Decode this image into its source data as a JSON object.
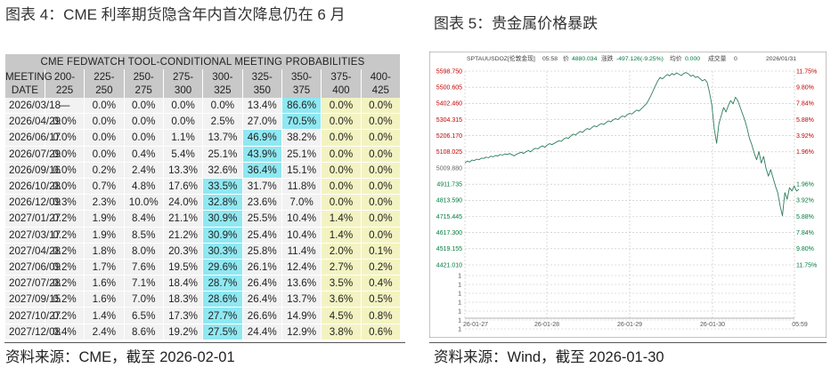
{
  "left": {
    "title": "图表 4：CME 利率期货隐含年内首次降息仍在 6 月",
    "source": "资料来源：CME，截至 2026-02-01",
    "table": {
      "heading": "CME FEDWATCH TOOL-CONDITIONAL MEETING PROBABILITIES",
      "date_header": [
        "MEETING",
        "DATE"
      ],
      "columns": [
        [
          "200-",
          "225"
        ],
        [
          "225-",
          "250"
        ],
        [
          "250-",
          "275"
        ],
        [
          "275-",
          "300"
        ],
        [
          "300-",
          "325"
        ],
        [
          "325-",
          "350"
        ],
        [
          "350-",
          "375"
        ],
        [
          "375-",
          "400"
        ],
        [
          "400-",
          "425"
        ]
      ],
      "rows": [
        {
          "date": "2026/03/18",
          "values": [
            "—",
            "0.0%",
            "0.0%",
            "0.0%",
            "0.0%",
            "13.4%",
            "86.6%",
            "0.0%",
            "0.0%"
          ],
          "max": 6
        },
        {
          "date": "2026/04/29",
          "values": [
            "0.0%",
            "0.0%",
            "0.0%",
            "0.0%",
            "2.5%",
            "27.0%",
            "70.5%",
            "0.0%",
            "0.0%"
          ],
          "max": 6
        },
        {
          "date": "2026/06/17",
          "values": [
            "0.0%",
            "0.0%",
            "0.0%",
            "1.1%",
            "13.7%",
            "46.9%",
            "38.2%",
            "0.0%",
            "0.0%"
          ],
          "max": 5
        },
        {
          "date": "2026/07/29",
          "values": [
            "0.0%",
            "0.0%",
            "0.4%",
            "5.4%",
            "25.1%",
            "43.9%",
            "25.1%",
            "0.0%",
            "0.0%"
          ],
          "max": 5
        },
        {
          "date": "2026/09/16",
          "values": [
            "0.0%",
            "0.2%",
            "2.4%",
            "13.3%",
            "32.6%",
            "36.4%",
            "15.1%",
            "0.0%",
            "0.0%"
          ],
          "max": 5
        },
        {
          "date": "2026/10/28",
          "values": [
            "0.0%",
            "0.7%",
            "4.8%",
            "17.6%",
            "33.5%",
            "31.7%",
            "11.8%",
            "0.0%",
            "0.0%"
          ],
          "max": 4
        },
        {
          "date": "2026/12/09",
          "values": [
            "0.3%",
            "2.3%",
            "10.0%",
            "24.0%",
            "32.8%",
            "23.6%",
            "7.0%",
            "0.0%",
            "0.0%"
          ],
          "max": 4
        },
        {
          "date": "2027/01/27",
          "values": [
            "0.2%",
            "1.9%",
            "8.4%",
            "21.1%",
            "30.9%",
            "25.5%",
            "10.4%",
            "1.4%",
            "0.0%"
          ],
          "max": 4
        },
        {
          "date": "2027/03/17",
          "values": [
            "0.2%",
            "1.9%",
            "8.5%",
            "21.2%",
            "30.9%",
            "25.4%",
            "10.4%",
            "1.4%",
            "0.0%"
          ],
          "max": 4
        },
        {
          "date": "2027/04/28",
          "values": [
            "0.2%",
            "1.8%",
            "8.0%",
            "20.3%",
            "30.3%",
            "25.8%",
            "11.4%",
            "2.0%",
            "0.1%"
          ],
          "max": 4
        },
        {
          "date": "2027/06/09",
          "values": [
            "0.2%",
            "1.7%",
            "7.6%",
            "19.5%",
            "29.6%",
            "26.1%",
            "12.4%",
            "2.7%",
            "0.2%"
          ],
          "max": 4
        },
        {
          "date": "2027/07/28",
          "values": [
            "0.2%",
            "1.6%",
            "7.1%",
            "18.4%",
            "28.7%",
            "26.4%",
            "13.6%",
            "3.5%",
            "0.4%"
          ],
          "max": 4
        },
        {
          "date": "2027/09/15",
          "values": [
            "0.2%",
            "1.6%",
            "7.0%",
            "18.3%",
            "28.6%",
            "26.4%",
            "13.7%",
            "3.6%",
            "0.5%"
          ],
          "max": 4
        },
        {
          "date": "2027/10/27",
          "values": [
            "0.2%",
            "1.4%",
            "6.5%",
            "17.3%",
            "27.7%",
            "26.6%",
            "14.9%",
            "4.5%",
            "0.8%"
          ],
          "max": 4
        },
        {
          "date": "2027/12/08",
          "values": [
            "0.4%",
            "2.4%",
            "8.6%",
            "19.2%",
            "27.5%",
            "24.4%",
            "12.9%",
            "3.8%",
            "0.6%"
          ],
          "max": 4
        }
      ],
      "colors": {
        "header": "#c8c8c8",
        "row": "#f2f2f2",
        "yellow": "#f3f3c2",
        "max": "#8fe8f2"
      }
    }
  },
  "right": {
    "title": "图表 5：贵金属价格暴跌",
    "source": "资料来源：Wind，截至 2026-01-30",
    "chart_data": {
      "type": "line",
      "header": {
        "name": "SPTAUUSDOZ[伦敦金现]",
        "time": "05:58",
        "price_label": "价",
        "price": "4880.034",
        "chg_label": "涨跌",
        "chg": "-497.126(-9.25%)",
        "avg_label": "均价",
        "avg": "0.000",
        "vol_label": "成交量",
        "vol": "0",
        "date": "2026/01/31"
      },
      "y_ticks": [
        "5598.750",
        "5500.605",
        "5402.460",
        "5304.315",
        "5206.170",
        "5108.025",
        "5009.880",
        "4911.735",
        "4813.590",
        "4715.445",
        "4617.300",
        "4519.155",
        "4421.010"
      ],
      "zero_tick": "5009.880",
      "pct_ticks_right": [
        "11.75%",
        "9.80%",
        "7.84%",
        "5.88%",
        "3.92%",
        "1.96%",
        "",
        "1.96%",
        "3.92%",
        "5.88%",
        "7.84%",
        "9.80%",
        "11.75%"
      ],
      "lower_ticks": [
        "1",
        "1",
        "1",
        "1",
        "1",
        "1",
        "1"
      ],
      "x_labels": [
        "26-01-27",
        "26-01-28",
        "26-01-29",
        "26-01-30",
        "05:59"
      ],
      "ylim": [
        4421.01,
        5598.75
      ],
      "colors": {
        "line": "#2e7d5b",
        "up": "#c00000",
        "down": "#007a3d",
        "grid": "#c0c0c0",
        "label": "#222222"
      },
      "series": [
        {
          "values": [
            5040,
            5052,
            5046,
            5058,
            5055,
            5064,
            5060,
            5070,
            5068,
            5076,
            5072,
            5082,
            5078,
            5086,
            5083,
            5092,
            5088,
            5096,
            5092,
            5098,
            5090,
            5084,
            5094,
            5100,
            5106,
            5098,
            5110,
            5116,
            5108,
            5122,
            5130,
            5126,
            5138,
            5144,
            5136,
            5150,
            5158,
            5152,
            5160,
            5168,
            5176,
            5172,
            5186,
            5194,
            5190,
            5204,
            5216,
            5210,
            5222,
            5232,
            5226,
            5240,
            5250,
            5244,
            5256,
            5266,
            5260,
            5272,
            5280,
            5274,
            5286,
            5296,
            5290,
            5302,
            5310,
            5304,
            5316,
            5326,
            5320,
            5334,
            5342,
            5338,
            5350,
            5362,
            5356,
            5370,
            5384,
            5398,
            5420,
            5448,
            5480,
            5510,
            5540,
            5560,
            5552,
            5566,
            5578,
            5570,
            5584,
            5576,
            5588,
            5580,
            5572,
            5584,
            5590,
            5582,
            5568,
            5574,
            5560,
            5566,
            5552,
            5540,
            5548,
            5530,
            5470,
            5390,
            5250,
            5160,
            5280,
            5330,
            5378,
            5350,
            5390,
            5420,
            5400,
            5440,
            5420,
            5380,
            5340,
            5300,
            5250,
            5190,
            5150,
            5100,
            5060,
            5110,
            5040,
            5080,
            5010,
            4960,
            5000,
            4950,
            4900,
            4860,
            4780,
            4720,
            4860,
            4820,
            4890,
            4870,
            4900,
            4870,
            4880
          ]
        }
      ]
    }
  }
}
